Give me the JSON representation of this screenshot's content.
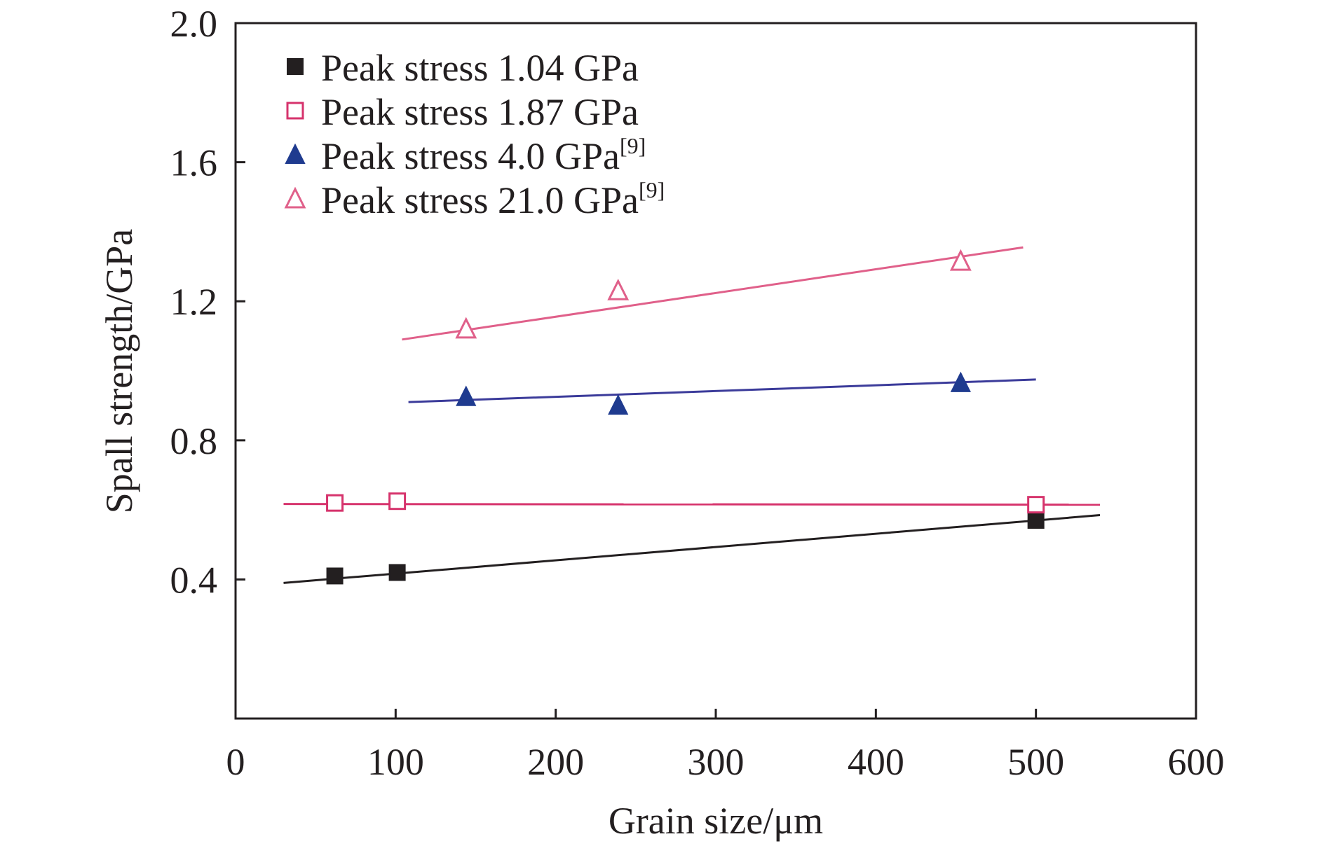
{
  "chart_data": {
    "type": "scatter",
    "title": "",
    "xlabel": "Grain size/μm",
    "ylabel": "Spall strength/GPa",
    "xlim": [
      0,
      600
    ],
    "ylim": [
      0,
      2.0
    ],
    "x_ticks": [
      "0",
      "100",
      "200",
      "300",
      "400",
      "500",
      "600"
    ],
    "y_ticks": [
      "0.4",
      "0.8",
      "1.2",
      "1.6",
      "2.0"
    ],
    "grid": false,
    "legend_position": "top-left",
    "series": [
      {
        "name": "Peak stress 1.04 GPa",
        "name_sup": "",
        "marker": "square-filled",
        "marker_color": "#231f20",
        "line_color": "#231f20",
        "x": [
          62,
          101,
          500
        ],
        "y": [
          0.41,
          0.42,
          0.57
        ],
        "fit": {
          "x": [
            30,
            540
          ],
          "y": [
            0.39,
            0.585
          ]
        }
      },
      {
        "name": "Peak stress 1.87 GPa",
        "name_sup": "",
        "marker": "square-open",
        "marker_color": "#d6336c",
        "line_color": "#d6336c",
        "x": [
          62,
          101,
          500
        ],
        "y": [
          0.62,
          0.625,
          0.615
        ],
        "fit": {
          "x": [
            30,
            540
          ],
          "y": [
            0.617,
            0.615
          ]
        }
      },
      {
        "name": "Peak stress 4.0 GPa",
        "name_sup": "[9]",
        "marker": "triangle-filled",
        "marker_color": "#1f3b8f",
        "line_color": "#3b3b9a",
        "x": [
          144,
          239,
          453
        ],
        "y": [
          0.925,
          0.9,
          0.965
        ],
        "fit": {
          "x": [
            108,
            500
          ],
          "y": [
            0.91,
            0.975
          ]
        }
      },
      {
        "name": "Peak stress 21.0 GPa",
        "name_sup": "[9]",
        "marker": "triangle-open",
        "marker_color": "#e0608a",
        "line_color": "#e0608a",
        "x": [
          144,
          239,
          453
        ],
        "y": [
          1.12,
          1.23,
          1.315
        ],
        "fit": {
          "x": [
            104,
            492
          ],
          "y": [
            1.09,
            1.355
          ]
        }
      }
    ]
  }
}
